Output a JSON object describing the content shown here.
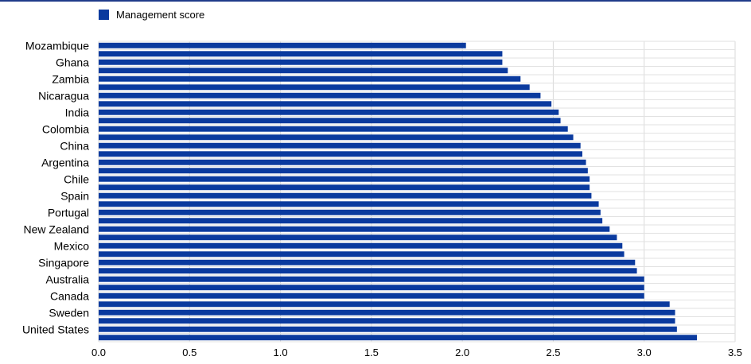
{
  "chart_data": {
    "type": "bar",
    "orientation": "horizontal",
    "legend_position": "top-left",
    "color": "#0a3a9e",
    "series": [
      {
        "name": "Management score",
        "values": [
          2.02,
          2.22,
          2.22,
          2.25,
          2.32,
          2.37,
          2.43,
          2.49,
          2.53,
          2.54,
          2.58,
          2.61,
          2.65,
          2.66,
          2.68,
          2.69,
          2.7,
          2.7,
          2.71,
          2.75,
          2.76,
          2.77,
          2.81,
          2.85,
          2.88,
          2.89,
          2.95,
          2.96,
          3.0,
          3.0,
          3.0,
          3.14,
          3.17,
          3.17,
          3.18,
          3.29
        ]
      }
    ],
    "tick_labels": [
      "Mozambique",
      "",
      "Ghana",
      "",
      "Zambia",
      "",
      "Nicaragua",
      "",
      "India",
      "",
      "Colombia",
      "",
      "China",
      "",
      "Argentina",
      "",
      "Chile",
      "",
      "Spain",
      "",
      "Portugal",
      "",
      "New Zealand",
      "",
      "Mexico",
      "",
      "Singapore",
      "",
      "Australia",
      "",
      "Canada",
      "",
      "Sweden",
      "",
      "United States",
      ""
    ],
    "x_ticks": [
      "0.0",
      "0.5",
      "1.0",
      "1.5",
      "2.0",
      "2.5",
      "3.0",
      "3.5"
    ],
    "xlim": [
      0,
      3.5
    ],
    "grid": true
  }
}
